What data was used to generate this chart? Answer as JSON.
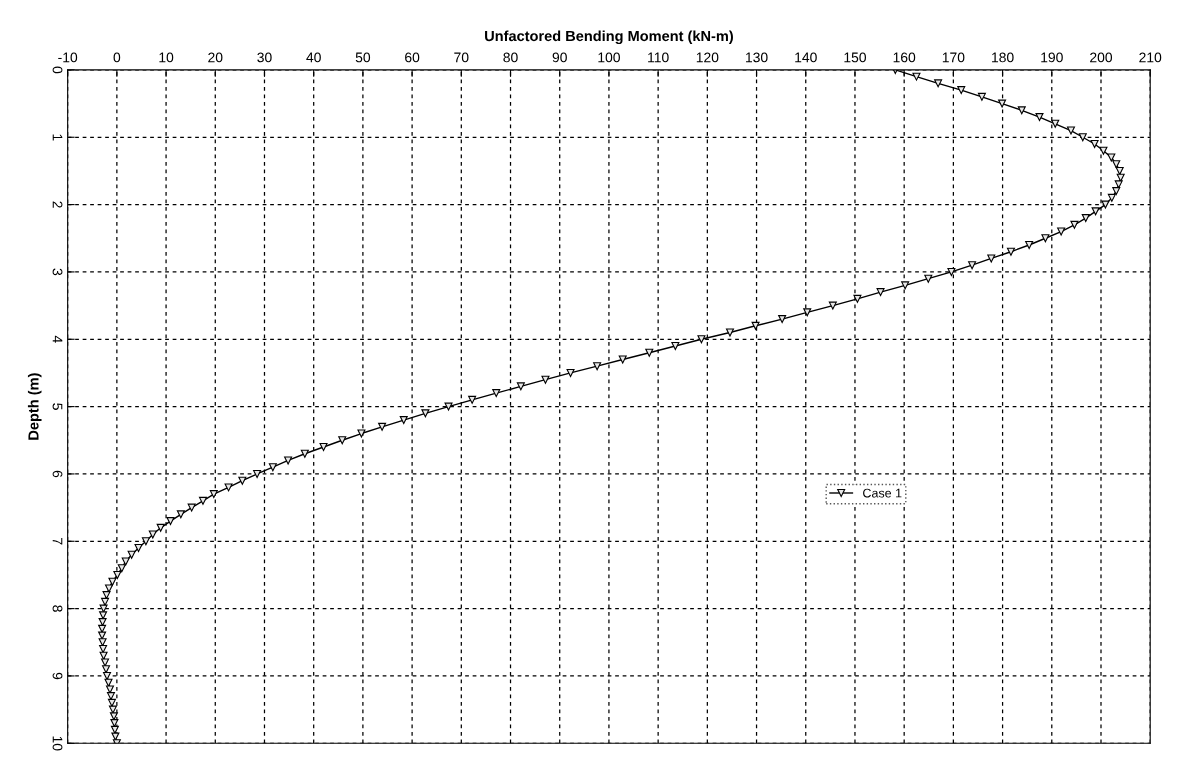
{
  "chart_data": {
    "type": "line",
    "xlabel": "Unfactored Bending Moment (kN-m)",
    "ylabel": "Depth (m)",
    "xlim": [
      -10,
      210
    ],
    "xticks": [
      -10,
      0,
      10,
      20,
      30,
      40,
      50,
      60,
      70,
      80,
      90,
      100,
      110,
      120,
      130,
      140,
      150,
      160,
      170,
      180,
      190,
      200,
      210
    ],
    "ylim": [
      10,
      0
    ],
    "yticks": [
      0,
      1,
      2,
      3,
      4,
      5,
      6,
      7,
      8,
      9,
      10
    ],
    "grid": true,
    "legend": "right",
    "marker": "triangle",
    "line_style": "solid",
    "series": [
      {
        "name": "Case 1",
        "color": "#000000",
        "x": [
          158.2,
          162.5,
          166.9,
          171.6,
          175.8,
          179.9,
          183.9,
          187.5,
          190.7,
          193.9,
          196.3,
          198.7,
          200.5,
          202.1,
          203.1,
          203.8,
          204.0,
          203.6,
          203.1,
          202.2,
          200.9,
          198.9,
          196.9,
          194.6,
          191.9,
          188.7,
          185.4,
          181.7,
          177.7,
          173.8,
          169.6,
          164.9,
          160.2,
          155.2,
          150.5,
          145.5,
          140.3,
          135.2,
          129.8,
          124.6,
          118.8,
          113.5,
          108.2,
          102.8,
          97.6,
          92.2,
          87.1,
          82.1,
          77.1,
          72.2,
          67.4,
          62.7,
          58.3,
          53.9,
          49.7,
          45.8,
          42.0,
          38.2,
          34.8,
          31.7,
          28.5,
          25.5,
          22.7,
          19.7,
          17.5,
          15.2,
          13.0,
          10.9,
          8.9,
          7.3,
          5.9,
          4.4,
          3.0,
          1.8,
          1.0,
          0.1,
          -0.9,
          -1.6,
          -2.1,
          -2.4,
          -2.7,
          -2.8,
          -2.9,
          -3.0,
          -3.0,
          -2.9,
          -2.8,
          -2.7,
          -2.4,
          -2.2,
          -2.0,
          -1.7,
          -1.4,
          -1.2,
          -1.0,
          -0.8,
          -0.6,
          -0.5,
          -0.4,
          -0.3,
          0.0
        ],
        "values": [
          0,
          0.1,
          0.2,
          0.3,
          0.4,
          0.5,
          0.6,
          0.7,
          0.8,
          0.9,
          1,
          1.1,
          1.2,
          1.3,
          1.4,
          1.5,
          1.6,
          1.7,
          1.8,
          1.9,
          2,
          2.1,
          2.2,
          2.3,
          2.4,
          2.5,
          2.6,
          2.7,
          2.8,
          2.9,
          3,
          3.1,
          3.2,
          3.3,
          3.4,
          3.5,
          3.6,
          3.7,
          3.8,
          3.9,
          4,
          4.1,
          4.2,
          4.3,
          4.4,
          4.5,
          4.6,
          4.7,
          4.8,
          4.9,
          5,
          5.1,
          5.2,
          5.3,
          5.4,
          5.5,
          5.6,
          5.7,
          5.8,
          5.9,
          6,
          6.1,
          6.2,
          6.3,
          6.4,
          6.5,
          6.6,
          6.7,
          6.8,
          6.9,
          7,
          7.1,
          7.2,
          7.3,
          7.4,
          7.5,
          7.6,
          7.7,
          7.8,
          7.9,
          8,
          8.1,
          8.2,
          8.3,
          8.4,
          8.5,
          8.6,
          8.7,
          8.8,
          8.9,
          9,
          9.1,
          9.2,
          9.3,
          9.4,
          9.5,
          9.6,
          9.7,
          9.8,
          9.9,
          10
        ]
      }
    ]
  }
}
